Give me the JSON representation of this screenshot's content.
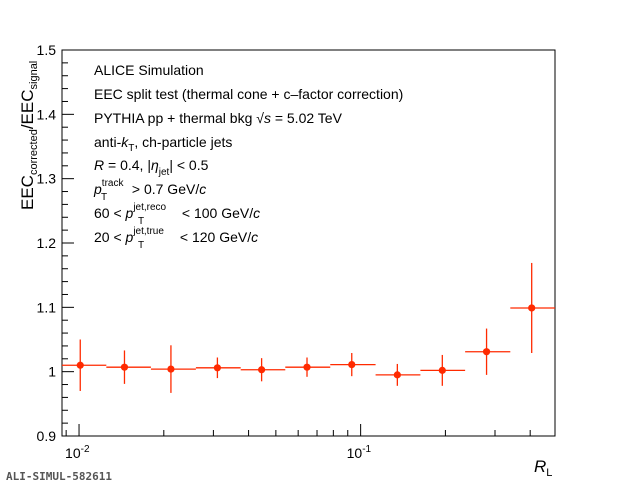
{
  "chart_data": {
    "type": "scatter",
    "x_scale": "log",
    "xlim": [
      0.0087,
      0.49
    ],
    "ylim": [
      0.9,
      1.5
    ],
    "yticks": [
      "0.9",
      "1",
      "1.1",
      "1.2",
      "1.3",
      "1.4",
      "1.5"
    ],
    "xtick_labels": [
      "10^-2",
      "10^-1"
    ],
    "xlabel": {
      "main": "R",
      "sub": "L"
    },
    "ylabel": {
      "a": "EEC",
      "a_sub": "corrected",
      "sep": "/EEC",
      "b_sub": "signal"
    },
    "color": "#ff2a00",
    "points": [
      {
        "x": 0.0101,
        "y": 1.01,
        "xlo": 0.0087,
        "xhi": 0.0125,
        "err": 0.04
      },
      {
        "x": 0.0145,
        "y": 1.007,
        "xlo": 0.0125,
        "xhi": 0.018,
        "err": 0.026
      },
      {
        "x": 0.0212,
        "y": 1.004,
        "xlo": 0.018,
        "xhi": 0.026,
        "err": 0.037
      },
      {
        "x": 0.031,
        "y": 1.006,
        "xlo": 0.026,
        "xhi": 0.0375,
        "err": 0.016
      },
      {
        "x": 0.0445,
        "y": 1.003,
        "xlo": 0.0375,
        "xhi": 0.054,
        "err": 0.018
      },
      {
        "x": 0.0645,
        "y": 1.007,
        "xlo": 0.054,
        "xhi": 0.078,
        "err": 0.015
      },
      {
        "x": 0.093,
        "y": 1.011,
        "xlo": 0.078,
        "xhi": 0.113,
        "err": 0.018
      },
      {
        "x": 0.135,
        "y": 0.995,
        "xlo": 0.113,
        "xhi": 0.163,
        "err": 0.017
      },
      {
        "x": 0.195,
        "y": 1.002,
        "xlo": 0.163,
        "xhi": 0.235,
        "err": 0.024
      },
      {
        "x": 0.28,
        "y": 1.031,
        "xlo": 0.235,
        "xhi": 0.34,
        "err": 0.036
      },
      {
        "x": 0.405,
        "y": 1.099,
        "xlo": 0.34,
        "xhi": 0.49,
        "err": 0.07
      }
    ]
  },
  "legend": {
    "line1": "ALICE Simulation",
    "line2": "EEC split test (thermal cone + c–factor correction)",
    "line3": {
      "pre": "PYTHIA pp + thermal bkg ",
      "sqrt": "√",
      "s": "s",
      "post": " = 5.02 TeV"
    },
    "line4": {
      "pre": "anti-",
      "k": "k",
      "ksub": "T",
      "post": ", ch-particle jets"
    },
    "line5": {
      "R": "R",
      "mid": " = 0.4, |",
      "eta": "η",
      "etasub": "jet",
      "post": "| < 0.5"
    },
    "line6": {
      "p": "p",
      "sup": "track",
      "sub": "T",
      "post": " > 0.7 GeV/",
      "c": "c"
    },
    "line7": {
      "pre": "60 < ",
      "p": "p",
      "sup": "jet,reco",
      "sub": "T",
      "post": " < 100 GeV/",
      "c": "c"
    },
    "line8": {
      "pre": "20 < ",
      "p": "p",
      "sup": "jet,true",
      "sub": "T",
      "post": " < 120 GeV/",
      "c": "c"
    }
  },
  "footer": "ALI-SIMUL-582611"
}
